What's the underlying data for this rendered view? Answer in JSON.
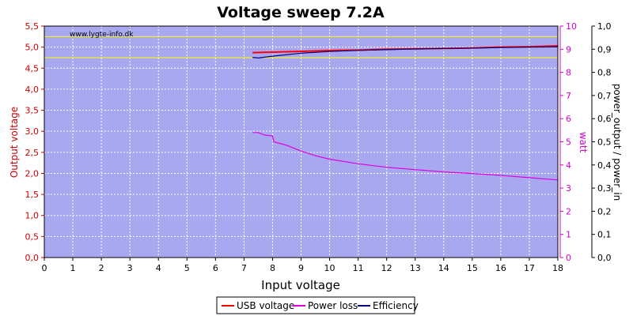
{
  "chart_data": {
    "type": "line",
    "title": "Voltage sweep 7.2A",
    "watermark": "www.lygte-info.dk",
    "xlabel": "Input voltage",
    "xlim": [
      0,
      18
    ],
    "x_ticks": [
      "0",
      "1",
      "2",
      "3",
      "4",
      "5",
      "6",
      "7",
      "8",
      "9",
      "10",
      "11",
      "12",
      "13",
      "14",
      "15",
      "16",
      "17",
      "18"
    ],
    "axes": {
      "left": {
        "label": "Output voltage",
        "ylim": [
          0,
          5.5
        ],
        "ticks": [
          "0,0",
          "0,5",
          "1,0",
          "1,5",
          "2,0",
          "2,5",
          "3,0",
          "3,5",
          "4,0",
          "4,5",
          "5,0",
          "5,5"
        ],
        "color": "#cc0000"
      },
      "right1": {
        "label": "watt",
        "ylim": [
          0,
          10
        ],
        "ticks": [
          "0",
          "1",
          "2",
          "3",
          "4",
          "5",
          "6",
          "7",
          "8",
          "9",
          "10"
        ],
        "color": "#cc00cc"
      },
      "right2": {
        "label": "power_output / power_in",
        "ylim": [
          0,
          1.0
        ],
        "ticks": [
          "0,0",
          "0,1",
          "0,2",
          "0,3",
          "0,4",
          "0,5",
          "0,6",
          "0,7",
          "0,8",
          "0,9",
          "1,0"
        ],
        "color": "#000000"
      }
    },
    "reference_lines": [
      {
        "axis": "left",
        "y": 5.25,
        "color": "#ffff00"
      },
      {
        "axis": "left",
        "y": 4.75,
        "color": "#ffff00"
      }
    ],
    "series": [
      {
        "name": "USB voltage",
        "axis": "left",
        "color": "#ff0000",
        "x": [
          7.3,
          8,
          9,
          10,
          11,
          12,
          13,
          14,
          15,
          16,
          17,
          18
        ],
        "y": [
          4.87,
          4.88,
          4.9,
          4.92,
          4.93,
          4.95,
          4.96,
          4.97,
          4.98,
          5.0,
          5.01,
          5.03
        ]
      },
      {
        "name": "Power loss",
        "axis": "right1",
        "color": "#dd00dd",
        "x": [
          7.3,
          7.5,
          7.7,
          8.0,
          8.05,
          8.5,
          9,
          9.5,
          10,
          11,
          12,
          13,
          14,
          15,
          16,
          17,
          18
        ],
        "y": [
          5.4,
          5.4,
          5.3,
          5.25,
          5.0,
          4.85,
          4.6,
          4.4,
          4.25,
          4.05,
          3.9,
          3.8,
          3.7,
          3.63,
          3.55,
          3.45,
          3.35
        ]
      },
      {
        "name": "Efficiency",
        "axis": "right2",
        "color": "#000080",
        "x": [
          7.3,
          7.5,
          8,
          9,
          10,
          11,
          12,
          13,
          14,
          15,
          16,
          17,
          18
        ],
        "y": [
          0.865,
          0.862,
          0.87,
          0.883,
          0.89,
          0.895,
          0.898,
          0.901,
          0.903,
          0.905,
          0.907,
          0.909,
          0.91
        ]
      }
    ],
    "grid": true,
    "legend_position": "bottom-center"
  }
}
